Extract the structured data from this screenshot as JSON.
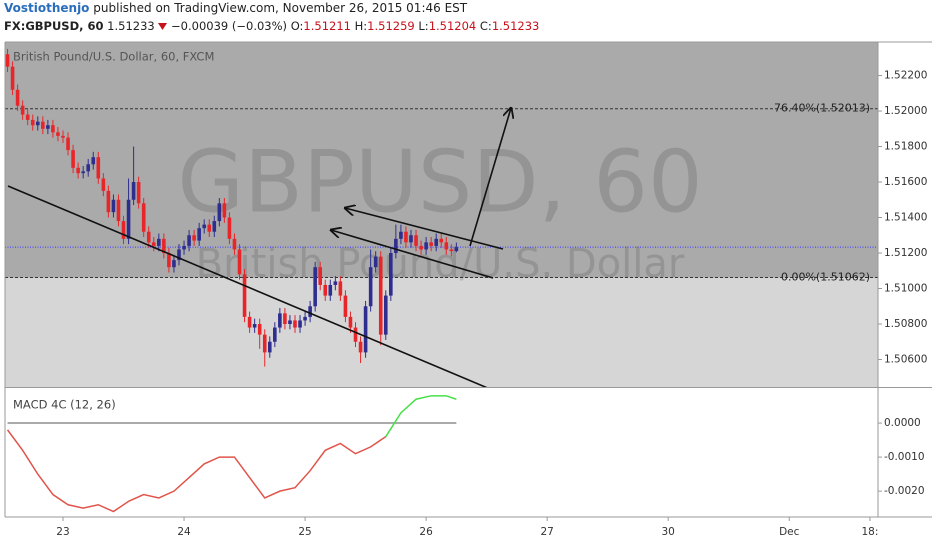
{
  "header": {
    "author": "Vostiothenjo",
    "published": "published on TradingView.com, November 26, 2015 01:46 EST",
    "symbol": "FX:GBPUSD, 60",
    "last": "1.51233",
    "change": "−0.00039 (−0.03%)",
    "ohlc": [
      {
        "label": "O:",
        "value": "1.51211"
      },
      {
        "label": "H:",
        "value": "1.51259"
      },
      {
        "label": "L:",
        "value": "1.51204"
      },
      {
        "label": "C:",
        "value": "1.51233"
      }
    ]
  },
  "chart_data": [
    {
      "type": "candlestick",
      "title": "British Pound/U.S. Dollar, 60, FXCM",
      "watermark": [
        "GBPUSD, 60",
        "British Pound/U.S. Dollar"
      ],
      "x": [
        -11,
        -10,
        -9,
        -8,
        -7,
        -6,
        -5,
        -4,
        -3,
        -2,
        -1,
        0,
        1,
        2,
        3,
        4,
        5,
        6,
        7,
        8,
        9,
        10,
        11,
        12,
        13,
        14,
        15,
        16,
        17,
        18,
        19,
        20,
        21,
        22,
        23,
        24,
        25,
        26,
        27,
        28,
        29,
        30,
        31,
        32,
        33,
        34,
        35,
        36,
        37,
        38,
        39,
        40,
        41,
        42,
        43,
        44,
        45,
        46,
        47,
        48,
        49,
        50,
        51,
        52,
        53,
        54,
        55,
        56,
        57,
        58,
        59,
        60,
        61,
        62,
        63,
        64,
        65,
        66,
        67,
        68,
        69,
        70,
        71,
        72,
        73,
        74,
        75,
        76,
        77,
        78
      ],
      "open": [
        1.5232,
        1.5225,
        1.5212,
        1.5203,
        1.5198,
        1.5195,
        1.5192,
        1.5194,
        1.519,
        1.5192,
        1.5188,
        1.5186,
        1.5185,
        1.5178,
        1.5168,
        1.5165,
        1.5166,
        1.517,
        1.5174,
        1.5162,
        1.5155,
        1.5143,
        1.515,
        1.5138,
        1.5128,
        1.515,
        1.516,
        1.5148,
        1.5132,
        1.5126,
        1.5124,
        1.5128,
        1.512,
        1.5112,
        1.5116,
        1.5122,
        1.5124,
        1.513,
        1.5127,
        1.5134,
        1.5136,
        1.5132,
        1.5138,
        1.5148,
        1.514,
        1.5128,
        1.5122,
        1.5108,
        1.5084,
        1.5078,
        1.508,
        1.5074,
        1.5064,
        1.507,
        1.5078,
        1.5086,
        1.508,
        1.5082,
        1.5078,
        1.5082,
        1.5084,
        1.509,
        1.5112,
        1.5102,
        1.5096,
        1.5102,
        1.5104,
        1.5096,
        1.5084,
        1.5078,
        1.507,
        1.5064,
        1.509,
        1.5112,
        1.5118,
        1.5074,
        1.5096,
        1.512,
        1.5128,
        1.5132,
        1.5126,
        1.513,
        1.5124,
        1.5122,
        1.5126,
        1.5124,
        1.5128,
        1.5126,
        1.5122,
        1.51211
      ],
      "high": [
        1.5235,
        1.5228,
        1.5215,
        1.5206,
        1.5201,
        1.5198,
        1.5197,
        1.5197,
        1.5195,
        1.5195,
        1.5191,
        1.5189,
        1.5188,
        1.5181,
        1.5171,
        1.5169,
        1.5173,
        1.5177,
        1.5177,
        1.5165,
        1.5158,
        1.5153,
        1.5153,
        1.5141,
        1.5162,
        1.518,
        1.5163,
        1.5151,
        1.5135,
        1.5129,
        1.5131,
        1.5131,
        1.5123,
        1.5119,
        1.5125,
        1.5127,
        1.5133,
        1.5133,
        1.5137,
        1.5139,
        1.5139,
        1.5141,
        1.5151,
        1.5151,
        1.5143,
        1.5131,
        1.5125,
        1.5111,
        1.5087,
        1.5083,
        1.5083,
        1.5077,
        1.5073,
        1.5081,
        1.5089,
        1.5089,
        1.5085,
        1.5085,
        1.5085,
        1.5087,
        1.5093,
        1.5115,
        1.5115,
        1.5105,
        1.5105,
        1.5107,
        1.5107,
        1.5099,
        1.5087,
        1.5081,
        1.5073,
        1.5093,
        1.5122,
        1.5121,
        1.5121,
        1.5099,
        1.5123,
        1.5136,
        1.5136,
        1.5135,
        1.5133,
        1.5133,
        1.5127,
        1.5129,
        1.5129,
        1.5131,
        1.5131,
        1.5129,
        1.5125,
        1.51259
      ],
      "low": [
        1.5222,
        1.5209,
        1.52,
        1.5195,
        1.5192,
        1.5189,
        1.5189,
        1.5187,
        1.5187,
        1.5185,
        1.5183,
        1.5182,
        1.5175,
        1.5165,
        1.5162,
        1.5162,
        1.5163,
        1.5167,
        1.5159,
        1.5152,
        1.514,
        1.514,
        1.5135,
        1.5125,
        1.5125,
        1.5147,
        1.5145,
        1.5129,
        1.5123,
        1.5121,
        1.5121,
        1.5117,
        1.5109,
        1.5109,
        1.5113,
        1.5119,
        1.5121,
        1.5124,
        1.5124,
        1.5131,
        1.5129,
        1.5129,
        1.5135,
        1.5137,
        1.5125,
        1.5119,
        1.5105,
        1.5081,
        1.5075,
        1.5075,
        1.5066,
        1.5056,
        1.5061,
        1.5067,
        1.5075,
        1.5077,
        1.5077,
        1.5075,
        1.5075,
        1.5079,
        1.5081,
        1.5087,
        1.5099,
        1.5093,
        1.5093,
        1.5099,
        1.5093,
        1.5081,
        1.5075,
        1.5067,
        1.5058,
        1.5061,
        1.5087,
        1.5109,
        1.5068,
        1.5071,
        1.5093,
        1.5117,
        1.5125,
        1.5123,
        1.5123,
        1.5121,
        1.5119,
        1.5119,
        1.5121,
        1.5121,
        1.5123,
        1.5119,
        1.5118,
        1.51204
      ],
      "close": [
        1.5225,
        1.5212,
        1.5203,
        1.5198,
        1.5195,
        1.5192,
        1.5194,
        1.519,
        1.5192,
        1.5188,
        1.5186,
        1.5185,
        1.5178,
        1.5168,
        1.5165,
        1.5166,
        1.517,
        1.5174,
        1.5162,
        1.5155,
        1.5143,
        1.515,
        1.5138,
        1.5128,
        1.515,
        1.516,
        1.5148,
        1.5132,
        1.5126,
        1.5124,
        1.5128,
        1.512,
        1.5112,
        1.5116,
        1.5122,
        1.5124,
        1.513,
        1.5127,
        1.5134,
        1.5136,
        1.5132,
        1.5138,
        1.5148,
        1.514,
        1.5128,
        1.5122,
        1.5108,
        1.5084,
        1.5078,
        1.508,
        1.5074,
        1.5064,
        1.507,
        1.5078,
        1.5086,
        1.508,
        1.5082,
        1.5078,
        1.5082,
        1.5084,
        1.509,
        1.5112,
        1.5102,
        1.5096,
        1.5102,
        1.5104,
        1.5096,
        1.5084,
        1.5078,
        1.507,
        1.5064,
        1.509,
        1.5112,
        1.5118,
        1.5074,
        1.5096,
        1.512,
        1.5128,
        1.5132,
        1.5126,
        1.513,
        1.5124,
        1.5122,
        1.5126,
        1.5124,
        1.5128,
        1.5126,
        1.5122,
        1.51211,
        1.51233
      ],
      "up_color": "#2e2e8f",
      "down_color": "#e8262a",
      "xlim": [
        -11.5,
        161.6
      ],
      "xticks": [
        {
          "value": 0,
          "label": "23"
        },
        {
          "value": 24,
          "label": "24"
        },
        {
          "value": 48,
          "label": "25"
        },
        {
          "value": 72,
          "label": "26"
        },
        {
          "value": 96,
          "label": "27"
        },
        {
          "value": 120,
          "label": "30"
        },
        {
          "value": 144,
          "label": "Dec"
        },
        {
          "value": 160,
          "label": "18:"
        }
      ],
      "ylim": [
        1.50445,
        1.52389
      ],
      "yticks": [
        {
          "value": 1.506,
          "label": "1.50600"
        },
        {
          "value": 1.508,
          "label": "1.50800"
        },
        {
          "value": 1.51,
          "label": "1.51000"
        },
        {
          "value": 1.512,
          "label": "1.51200"
        },
        {
          "value": 1.514,
          "label": "1.51400"
        },
        {
          "value": 1.516,
          "label": "1.51600"
        },
        {
          "value": 1.518,
          "label": "1.51800"
        },
        {
          "value": 1.52,
          "label": "1.52000"
        },
        {
          "value": 1.522,
          "label": "1.52200"
        }
      ],
      "levels": [
        {
          "value": 1.52013,
          "label": "76.40%(1.52013)"
        },
        {
          "value": 1.51062,
          "label": "0.00%(1.51062)"
        }
      ],
      "last_price": 1.51233,
      "last_price_color": "#3a3aff"
    },
    {
      "type": "line",
      "title": "MACD 4C (12, 26)",
      "x": [
        -11,
        -8,
        -5,
        -2,
        1,
        4,
        7,
        10,
        13,
        16,
        19,
        22,
        25,
        28,
        31,
        34,
        37,
        40,
        43,
        46,
        49,
        52,
        55,
        58,
        61,
        64,
        67,
        70,
        73,
        76,
        78
      ],
      "series": [
        {
          "color": "#e0544a",
          "values": [
            -0.0002,
            -0.0008,
            -0.0015,
            -0.0021,
            -0.0024,
            -0.0025,
            -0.0024,
            -0.0026,
            -0.0023,
            -0.0021,
            -0.0022,
            -0.002,
            -0.0016,
            -0.0012,
            -0.001,
            -0.001,
            -0.0016,
            -0.0022,
            -0.002,
            -0.0019,
            -0.0014,
            -0.0008,
            -0.0006,
            -0.0009,
            -0.0007,
            -0.0004,
            null,
            null,
            null,
            null,
            null
          ]
        },
        {
          "color": "#46e046",
          "values": [
            null,
            null,
            null,
            null,
            null,
            null,
            null,
            null,
            null,
            null,
            null,
            null,
            null,
            null,
            null,
            null,
            null,
            null,
            null,
            null,
            null,
            null,
            null,
            null,
            null,
            -0.0004,
            0.0003,
            0.0007,
            0.0008,
            0.0008,
            0.0007
          ]
        }
      ],
      "ylim": [
        -0.00276,
        0.00103
      ],
      "yticks": [
        {
          "value": 0,
          "label": "0.0000"
        },
        {
          "value": -0.001,
          "label": "-0.0010"
        },
        {
          "value": -0.002,
          "label": "-0.0020"
        }
      ]
    }
  ]
}
